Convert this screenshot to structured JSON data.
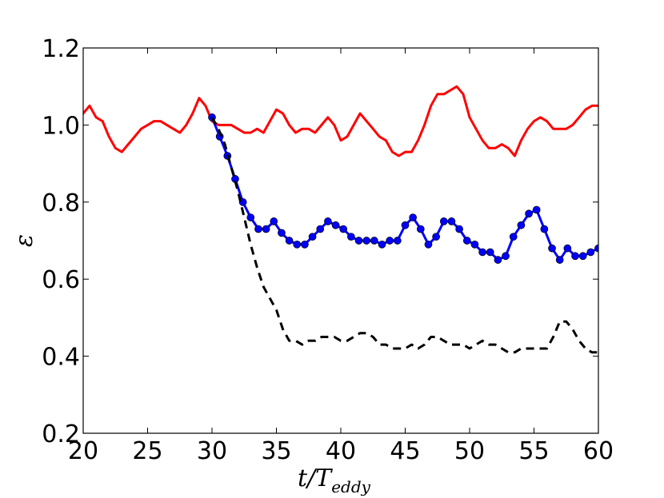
{
  "chart_data": {
    "type": "line",
    "xlabel": "t/T",
    "xlabel_sub": "eddy",
    "ylabel": "ε",
    "xlim": [
      20,
      60
    ],
    "ylim": [
      0.2,
      1.2
    ],
    "xticks": [
      20,
      25,
      30,
      35,
      40,
      45,
      50,
      55,
      60
    ],
    "xtick_labels": [
      "20",
      "25",
      "30",
      "35",
      "40",
      "45",
      "50",
      "55",
      "60"
    ],
    "yticks": [
      0.2,
      0.4,
      0.6,
      0.8,
      1.0,
      1.2
    ],
    "ytick_labels": [
      "0.2",
      "0.4",
      "0.6",
      "0.8",
      "1.0",
      "1.2"
    ],
    "grid": false,
    "series": [
      {
        "color": "#ff0000",
        "style": "solid",
        "markers": false,
        "x": [
          20.0,
          20.5,
          21.0,
          21.5,
          22.0,
          22.5,
          23.0,
          23.5,
          24.0,
          24.5,
          25.0,
          25.5,
          26.0,
          26.5,
          27.0,
          27.5,
          28.0,
          28.5,
          29.0,
          29.5,
          30.0,
          30.5,
          31.0,
          31.5,
          32.0,
          32.5,
          33.0,
          33.5,
          34.0,
          34.5,
          35.0,
          35.5,
          36.0,
          36.5,
          37.0,
          37.5,
          38.0,
          38.5,
          39.0,
          39.5,
          40.0,
          40.5,
          41.0,
          41.5,
          42.0,
          42.5,
          43.0,
          43.5,
          44.0,
          44.5,
          45.0,
          45.5,
          46.0,
          46.5,
          47.0,
          47.5,
          48.0,
          48.5,
          49.0,
          49.5,
          50.0,
          50.5,
          51.0,
          51.5,
          52.0,
          52.5,
          53.0,
          53.5,
          54.0,
          54.5,
          55.0,
          55.5,
          56.0,
          56.5,
          57.0,
          57.5,
          58.0,
          58.5,
          59.0,
          59.5,
          60.0
        ],
        "y": [
          1.03,
          1.05,
          1.02,
          1.01,
          0.97,
          0.94,
          0.93,
          0.95,
          0.97,
          0.99,
          1.0,
          1.01,
          1.01,
          1.0,
          0.99,
          0.98,
          1.0,
          1.03,
          1.07,
          1.05,
          1.01,
          1.0,
          1.0,
          1.0,
          0.99,
          0.98,
          0.98,
          0.99,
          0.98,
          1.01,
          1.04,
          1.03,
          1.0,
          0.98,
          0.99,
          0.99,
          0.98,
          1.0,
          1.02,
          1.0,
          0.96,
          0.97,
          1.0,
          1.03,
          1.01,
          0.99,
          0.97,
          0.96,
          0.93,
          0.92,
          0.93,
          0.93,
          0.96,
          1.0,
          1.05,
          1.08,
          1.08,
          1.09,
          1.1,
          1.08,
          1.02,
          0.99,
          0.96,
          0.94,
          0.94,
          0.95,
          0.94,
          0.92,
          0.96,
          0.99,
          1.01,
          1.02,
          1.01,
          0.99,
          0.99,
          0.99,
          1.0,
          1.02,
          1.04,
          1.05,
          1.05
        ]
      },
      {
        "color": "#0000ff",
        "style": "solid",
        "markers": true,
        "x": [
          30.0,
          30.6,
          31.2,
          31.8,
          32.4,
          33.0,
          33.6,
          34.2,
          34.8,
          35.4,
          36.0,
          36.6,
          37.2,
          37.8,
          38.4,
          39.0,
          39.6,
          40.2,
          40.8,
          41.4,
          42.0,
          42.6,
          43.2,
          43.8,
          44.4,
          45.0,
          45.6,
          46.2,
          46.8,
          47.4,
          48.0,
          48.6,
          49.2,
          49.8,
          50.4,
          51.0,
          51.6,
          52.2,
          52.8,
          53.4,
          54.0,
          54.6,
          55.2,
          55.8,
          56.4,
          57.0,
          57.6,
          58.2,
          58.8,
          59.4,
          60.0
        ],
        "y": [
          1.02,
          0.97,
          0.92,
          0.86,
          0.8,
          0.76,
          0.73,
          0.73,
          0.75,
          0.72,
          0.7,
          0.69,
          0.69,
          0.71,
          0.73,
          0.75,
          0.74,
          0.73,
          0.71,
          0.7,
          0.7,
          0.7,
          0.69,
          0.7,
          0.7,
          0.74,
          0.76,
          0.73,
          0.69,
          0.71,
          0.75,
          0.75,
          0.73,
          0.7,
          0.69,
          0.67,
          0.67,
          0.65,
          0.66,
          0.71,
          0.74,
          0.77,
          0.78,
          0.73,
          0.68,
          0.65,
          0.68,
          0.66,
          0.66,
          0.67,
          0.68
        ]
      },
      {
        "color": "#000000",
        "style": "dashed",
        "markers": false,
        "x": [
          30.0,
          30.5,
          31.0,
          31.5,
          32.0,
          32.5,
          33.0,
          33.5,
          34.0,
          34.5,
          35.0,
          35.5,
          36.0,
          36.5,
          37.0,
          37.5,
          38.0,
          38.5,
          39.0,
          39.5,
          40.0,
          40.5,
          41.0,
          41.5,
          42.0,
          42.5,
          43.0,
          43.5,
          44.0,
          44.5,
          45.0,
          45.5,
          46.0,
          46.5,
          47.0,
          47.5,
          48.0,
          48.5,
          49.0,
          49.5,
          50.0,
          50.5,
          51.0,
          51.5,
          52.0,
          52.5,
          53.0,
          53.5,
          54.0,
          54.5,
          55.0,
          55.5,
          56.0,
          56.5,
          57.0,
          57.5,
          58.0,
          58.5,
          59.0,
          59.5,
          60.0
        ],
        "y": [
          1.02,
          0.99,
          0.95,
          0.89,
          0.83,
          0.76,
          0.69,
          0.63,
          0.58,
          0.55,
          0.52,
          0.47,
          0.44,
          0.44,
          0.43,
          0.44,
          0.44,
          0.45,
          0.45,
          0.45,
          0.44,
          0.44,
          0.45,
          0.46,
          0.46,
          0.45,
          0.43,
          0.43,
          0.42,
          0.42,
          0.42,
          0.43,
          0.42,
          0.43,
          0.45,
          0.45,
          0.44,
          0.43,
          0.43,
          0.43,
          0.42,
          0.43,
          0.44,
          0.43,
          0.43,
          0.42,
          0.41,
          0.41,
          0.42,
          0.42,
          0.42,
          0.42,
          0.42,
          0.45,
          0.49,
          0.49,
          0.47,
          0.44,
          0.42,
          0.41,
          0.41
        ]
      }
    ]
  }
}
